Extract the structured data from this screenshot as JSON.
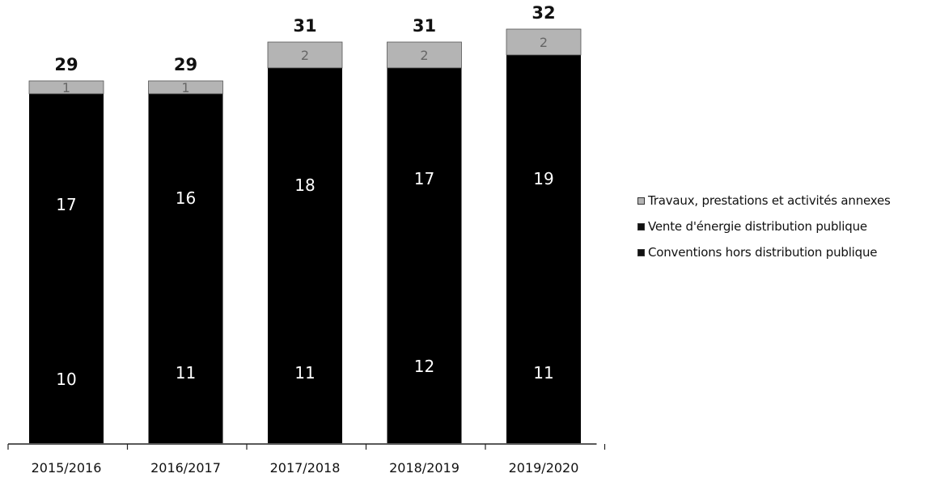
{
  "chart_data": {
    "type": "bar",
    "stacked": true,
    "categories": [
      "2015/2016",
      "2016/2017",
      "2017/2018",
      "2018/2019",
      "2019/2020"
    ],
    "series": [
      {
        "name": "Conventions hors distribution publique",
        "values": [
          10,
          11,
          11,
          12,
          11
        ],
        "value_labels": [
          "10",
          "11",
          "11",
          "12",
          "11"
        ],
        "color": "#000000"
      },
      {
        "name": "Vente d'énergie distribution publique",
        "values": [
          17,
          16,
          18,
          17,
          19
        ],
        "value_labels": [
          "17",
          "16",
          "18",
          "17",
          "19"
        ],
        "color": "#000000"
      },
      {
        "name": "Travaux, prestations et activités annexes",
        "values": [
          1,
          1,
          2,
          2,
          2
        ],
        "value_labels": [
          "1",
          "1",
          "2",
          "2",
          "2"
        ],
        "color": "#b4b4b4"
      }
    ],
    "totals": [
      "29",
      "29",
      "31",
      "31",
      "32"
    ],
    "ylim": [
      0,
      32
    ],
    "legend_position": "right",
    "grid": false
  },
  "legend": [
    {
      "label": "Travaux, prestations et activités annexes",
      "color": "#b4b4b4"
    },
    {
      "label": "Vente d'énergie distribution publique",
      "color": "#111111"
    },
    {
      "label": "Conventions hors distribution publique",
      "color": "#111111"
    }
  ]
}
